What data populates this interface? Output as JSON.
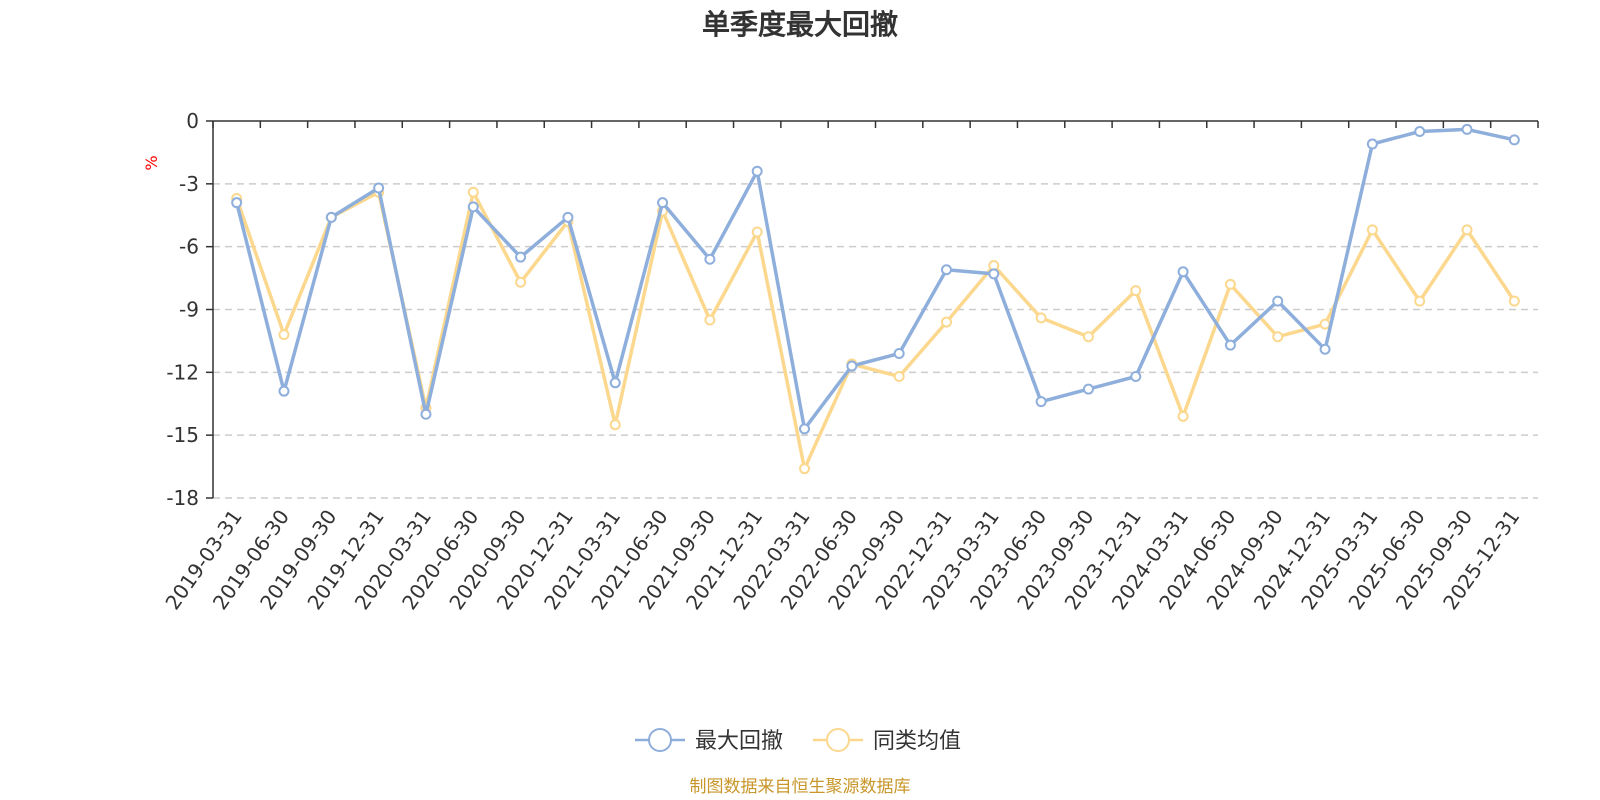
{
  "chart_data": {
    "type": "line",
    "title": "单季度最大回撤",
    "ylabel": "%",
    "ylim": [
      -18,
      0
    ],
    "yticks": [
      0,
      -3,
      -6,
      -9,
      -12,
      -15,
      -18
    ],
    "grid": true,
    "legend_position": "bottom",
    "categories": [
      "2019-03-31",
      "2019-06-30",
      "2019-09-30",
      "2019-12-31",
      "2020-03-31",
      "2020-06-30",
      "2020-09-30",
      "2020-12-31",
      "2021-03-31",
      "2021-06-30",
      "2021-09-30",
      "2021-12-31",
      "2022-03-31",
      "2022-06-30",
      "2022-09-30",
      "2022-12-31",
      "2023-03-31",
      "2023-06-30",
      "2023-09-30",
      "2023-12-31",
      "2024-03-31",
      "2024-06-30",
      "2024-09-30",
      "2024-12-31",
      "2025-03-31",
      "2025-06-30",
      "2025-09-30",
      "2025-12-31"
    ],
    "series": [
      {
        "name": "最大回撤",
        "color": "#8eaedc",
        "values": [
          -3.9,
          -12.9,
          -4.6,
          -3.2,
          -14.0,
          -4.1,
          -6.5,
          -4.6,
          -12.5,
          -3.9,
          -6.6,
          -2.4,
          -14.7,
          -11.7,
          -11.1,
          -7.1,
          -7.3,
          -13.4,
          -12.8,
          -12.2,
          -7.2,
          -10.7,
          -8.6,
          -10.9,
          -1.1,
          -0.5,
          -0.4,
          -0.9
        ]
      },
      {
        "name": "同类均值",
        "color": "#fbd88e",
        "values": [
          -3.7,
          -10.2,
          -4.6,
          -3.4,
          -13.7,
          -3.4,
          -7.7,
          -4.8,
          -14.5,
          -4.3,
          -9.5,
          -5.3,
          -16.6,
          -11.6,
          -12.2,
          -9.6,
          -6.9,
          -9.4,
          -10.3,
          -8.1,
          -14.1,
          -7.8,
          -10.3,
          -9.7,
          -5.2,
          -8.6,
          -5.2,
          -8.6
        ]
      }
    ]
  },
  "source_text": "制图数据来自恒生聚源数据库"
}
